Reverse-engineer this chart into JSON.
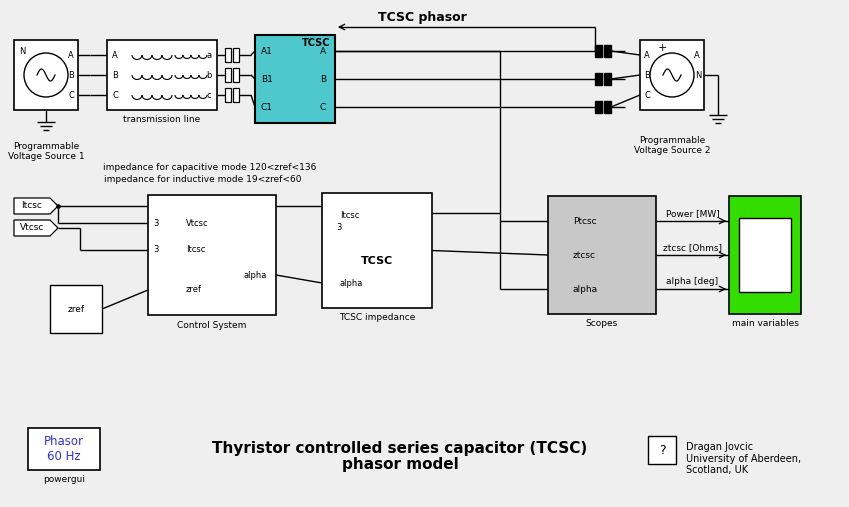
{
  "bg_color": "#efefef",
  "tcsc_color": "#4ec8cc",
  "green_color": "#33dd00",
  "gray_color": "#c8c8c8",
  "blue_text": "#3333cc",
  "title_top": "TCSC phasor",
  "title_bottom_line1": "Thyristor controlled series capacitor (TCSC)",
  "title_bottom_line2": "phasor model",
  "author": "Dragan Jovcic\nUniversity of Aberdeen,\nScotland, UK",
  "powergui_text": "Phasor\n60 Hz",
  "powergui_label": "powergui",
  "ann1": "impedance for capacitive mode 120<zref<136",
  "ann2": "impedance for inductive mode 19<zref<60",
  "vs1_label": "Programmable\nVoltage Source 1",
  "tl_label": "transmission line",
  "vs2_label": "Programmable\nVoltage Source 2",
  "cs_label": "Control System",
  "tcsc_imp_label": "TCSC impedance",
  "scopes_label": "Scopes",
  "mv_label": "main variables",
  "zref_label": "zref",
  "power_label": "Power [MW]",
  "ztcsc_label": "ztcsc [Ohms]",
  "alpha_label": "alpha [deg]"
}
